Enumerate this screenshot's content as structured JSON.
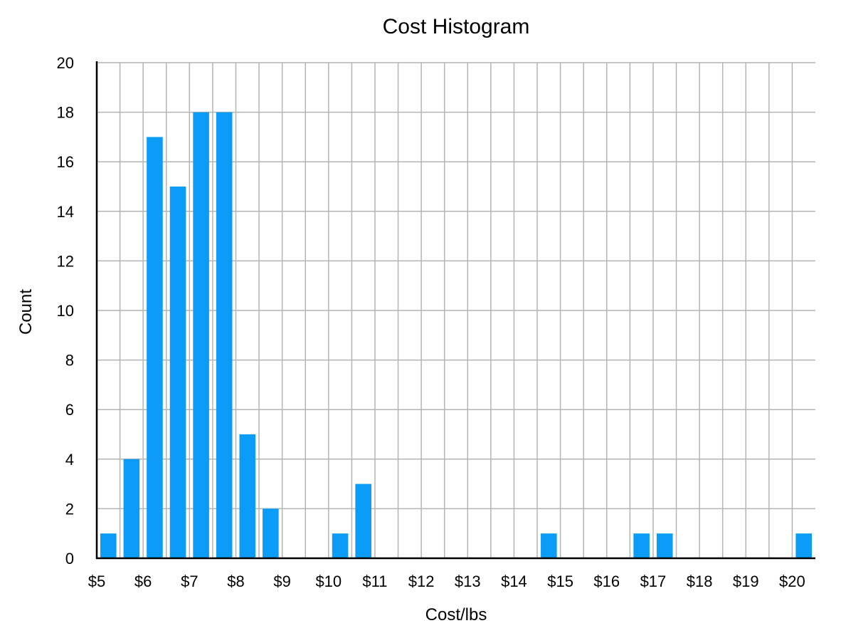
{
  "chart_data": {
    "type": "bar",
    "title": "Cost Histogram",
    "xlabel": "Cost/lbs",
    "ylabel": "Count",
    "ylim": [
      0,
      20
    ],
    "yticks": [
      "0",
      "2",
      "4",
      "6",
      "8",
      "10",
      "12",
      "14",
      "16",
      "18",
      "20"
    ],
    "xlim": [
      5,
      20.5
    ],
    "xticks": [
      {
        "value": 5,
        "label": "$5"
      },
      {
        "value": 6,
        "label": "$6"
      },
      {
        "value": 7,
        "label": "$7"
      },
      {
        "value": 8,
        "label": "$8"
      },
      {
        "value": 9,
        "label": "$9"
      },
      {
        "value": 10,
        "label": "$10"
      },
      {
        "value": 11,
        "label": "$11"
      },
      {
        "value": 12,
        "label": "$12"
      },
      {
        "value": 13,
        "label": "$13"
      },
      {
        "value": 14,
        "label": "$14"
      },
      {
        "value": 15,
        "label": "$15"
      },
      {
        "value": 16,
        "label": "$16"
      },
      {
        "value": 17,
        "label": "$17"
      },
      {
        "value": 18,
        "label": "$18"
      },
      {
        "value": 19,
        "label": "$19"
      },
      {
        "value": 20,
        "label": "$20"
      }
    ],
    "bin_width": 0.5,
    "bins": [
      5,
      5.5,
      6,
      6.5,
      7,
      7.5,
      8,
      8.5,
      9,
      9.5,
      10,
      10.5,
      11,
      11.5,
      12,
      12.5,
      13,
      13.5,
      14,
      14.5,
      15,
      15.5,
      16,
      16.5,
      17,
      17.5,
      18,
      18.5,
      19,
      19.5,
      20
    ],
    "values": [
      1,
      4,
      17,
      15,
      18,
      18,
      5,
      2,
      0,
      0,
      1,
      3,
      0,
      0,
      0,
      0,
      0,
      0,
      0,
      1,
      0,
      0,
      0,
      1,
      1,
      0,
      0,
      0,
      0,
      0,
      1
    ],
    "grid": true,
    "bar_color": "#0a9cf6",
    "grid_color": "#b4b4b4"
  }
}
